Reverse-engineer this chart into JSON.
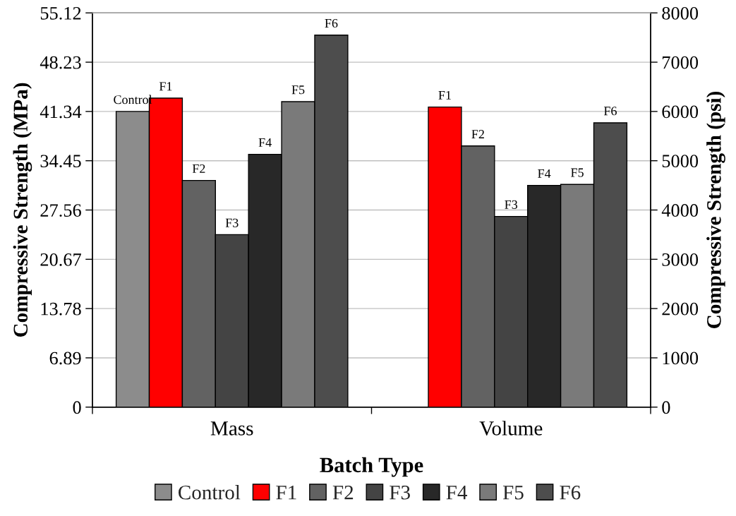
{
  "chart_data": {
    "type": "bar",
    "xlabel": "Batch Type",
    "ylabel": "Compressive Strength (MPa)",
    "y2label": "Compressive Strength (psi)",
    "categories": [
      "Mass",
      "Volume"
    ],
    "series": [
      {
        "name": "Control",
        "color": "#8c8c8c",
        "values": [
          6000,
          null
        ],
        "value_labels": [
          "Control",
          null
        ],
        "axis": "y2"
      },
      {
        "name": "F1",
        "color": "#ff0000",
        "values": [
          6270,
          6090
        ],
        "value_labels": [
          "F1",
          "F1"
        ],
        "axis": "y2"
      },
      {
        "name": "F2",
        "color": "#626262",
        "values": [
          4600,
          5300
        ],
        "value_labels": [
          "F2",
          "F2"
        ],
        "axis": "y2"
      },
      {
        "name": "F3",
        "color": "#444444",
        "values": [
          3500,
          3870
        ],
        "value_labels": [
          "F3",
          "F3"
        ],
        "axis": "y2"
      },
      {
        "name": "F4",
        "color": "#282828",
        "values": [
          5130,
          4500
        ],
        "value_labels": [
          "F4",
          "F4"
        ],
        "axis": "y2"
      },
      {
        "name": "F5",
        "color": "#7a7a7a",
        "values": [
          6200,
          4520
        ],
        "value_labels": [
          "F5",
          "F5"
        ],
        "axis": "y2"
      },
      {
        "name": "F6",
        "color": "#4d4d4d",
        "values": [
          7550,
          5770
        ],
        "value_labels": [
          "F6",
          "F6"
        ],
        "axis": "y2"
      }
    ],
    "ylim": [
      0,
      55.12
    ],
    "yticks": [
      0,
      6.89,
      13.78,
      20.67,
      27.56,
      34.45,
      41.34,
      48.23,
      55.12
    ],
    "y2lim": [
      0,
      8000
    ],
    "y2ticks": [
      0,
      1000,
      2000,
      3000,
      4000,
      5000,
      6000,
      7000,
      8000
    ],
    "grid": "y",
    "legend": "bottom"
  }
}
